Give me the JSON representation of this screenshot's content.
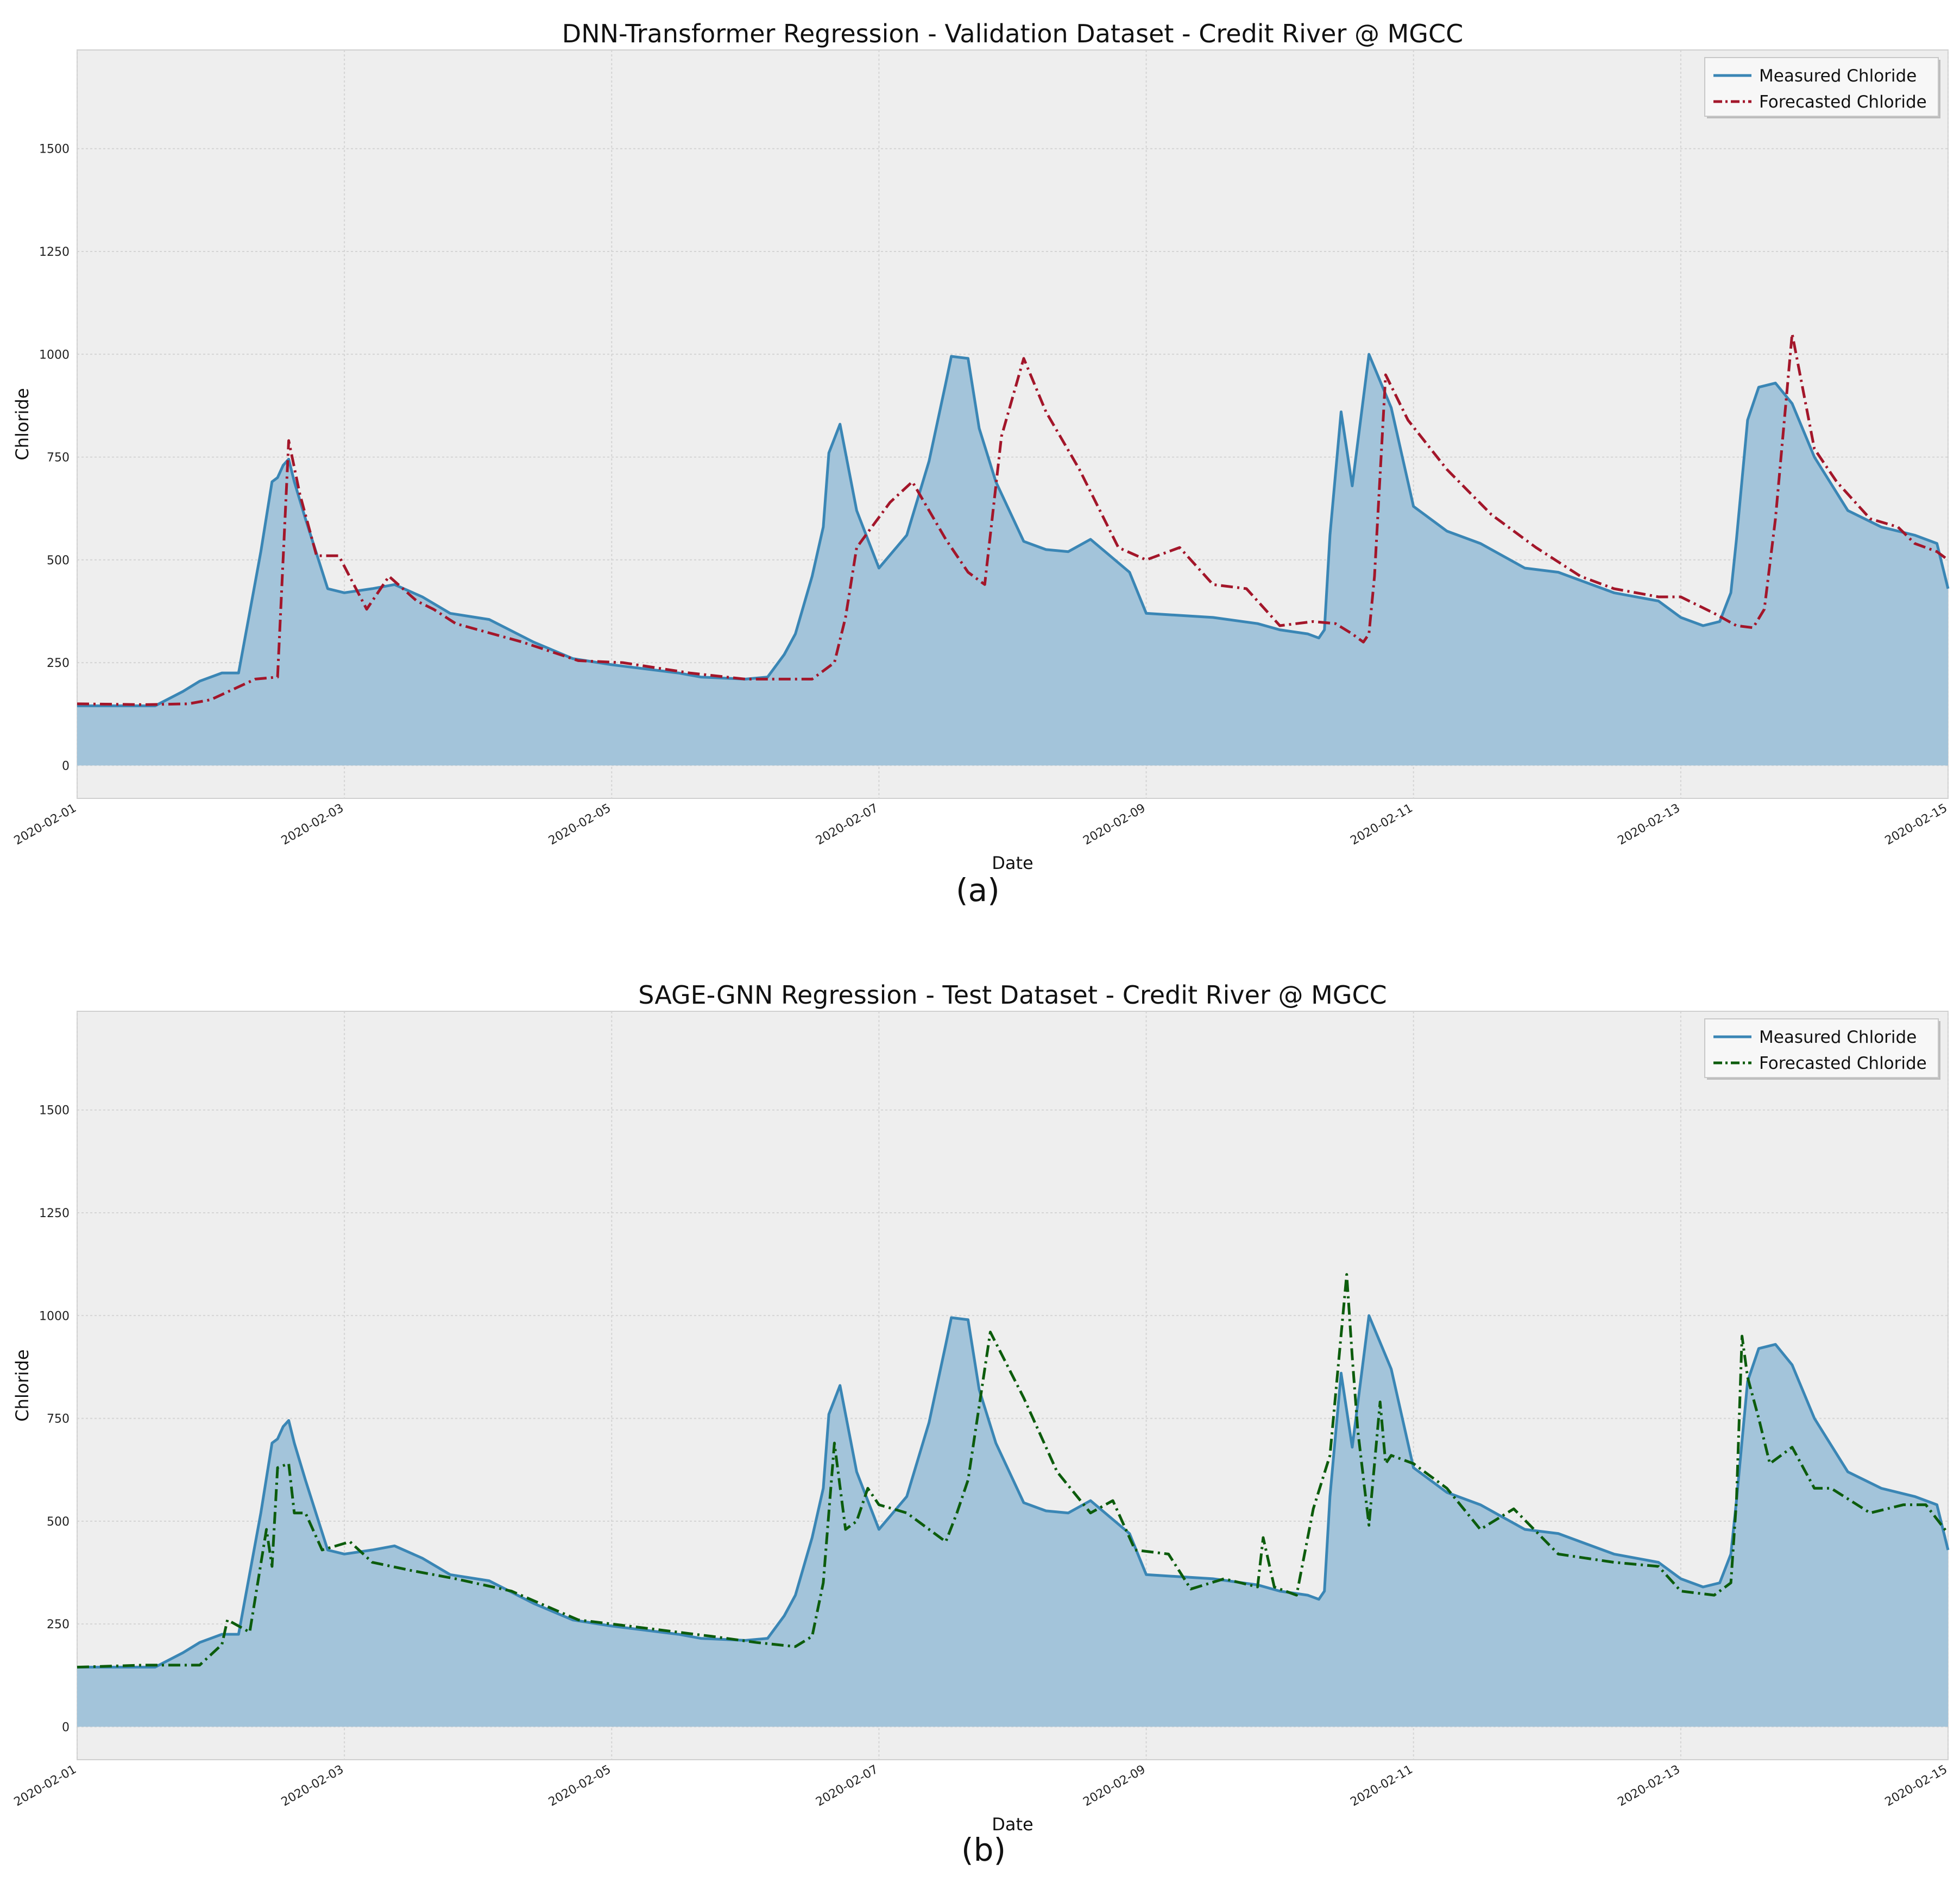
{
  "figure": {
    "captions": [
      "(a)",
      "(b)"
    ]
  },
  "chart_data": [
    {
      "type": "line",
      "title": "DNN-Transformer Regression - Validation Dataset - Credit River @ MGCC",
      "xlabel": "Date",
      "ylabel": "Chloride",
      "xlim": [
        "2020-02-01",
        "2020-02-15"
      ],
      "ylim": [
        -80,
        1740
      ],
      "x_ticks": [
        "2020-02-01",
        "2020-02-03",
        "2020-02-05",
        "2020-02-07",
        "2020-02-09",
        "2020-02-11",
        "2020-02-13",
        "2020-02-15"
      ],
      "y_ticks": [
        0,
        250,
        500,
        750,
        1000,
        1250,
        1500
      ],
      "grid": true,
      "legend_position": "top-right",
      "series": [
        {
          "name": "Measured Chloride",
          "style": "solid-filled",
          "color": "#3a86b5",
          "fill_color": "#a3c4da",
          "x": [
            "2020-02-01 00:00",
            "2020-02-01 14:00",
            "2020-02-01 19:00",
            "2020-02-01 22:00",
            "2020-02-02 02:00",
            "2020-02-02 05:00",
            "2020-02-02 09:00",
            "2020-02-02 11:00",
            "2020-02-02 12:00",
            "2020-02-02 13:00",
            "2020-02-02 14:00",
            "2020-02-02 15:00",
            "2020-02-02 17:00",
            "2020-02-02 21:00",
            "2020-02-03 00:00",
            "2020-02-03 05:00",
            "2020-02-03 09:00",
            "2020-02-03 14:00",
            "2020-02-03 19:00",
            "2020-02-04 02:00",
            "2020-02-04 10:00",
            "2020-02-04 17:00",
            "2020-02-05 00:00",
            "2020-02-05 12:00",
            "2020-02-05 16:00",
            "2020-02-06 00:00",
            "2020-02-06 04:00",
            "2020-02-06 07:00",
            "2020-02-06 09:00",
            "2020-02-06 12:00",
            "2020-02-06 14:00",
            "2020-02-06 15:00",
            "2020-02-06 17:00",
            "2020-02-06 20:00",
            "2020-02-07 00:00",
            "2020-02-07 05:00",
            "2020-02-07 09:00",
            "2020-02-07 12:00",
            "2020-02-07 13:00",
            "2020-02-07 16:00",
            "2020-02-07 18:00",
            "2020-02-07 21:00",
            "2020-02-08 02:00",
            "2020-02-08 06:00",
            "2020-02-08 10:00",
            "2020-02-08 14:00",
            "2020-02-08 21:00",
            "2020-02-09 00:00",
            "2020-02-09 12:00",
            "2020-02-09 20:00",
            "2020-02-10 00:00",
            "2020-02-10 05:00",
            "2020-02-10 07:00",
            "2020-02-10 08:00",
            "2020-02-10 09:00",
            "2020-02-10 11:00",
            "2020-02-10 13:00",
            "2020-02-10 16:00",
            "2020-02-10 20:00",
            "2020-02-11 00:00",
            "2020-02-11 06:00",
            "2020-02-11 12:00",
            "2020-02-11 20:00",
            "2020-02-12 02:00",
            "2020-02-12 12:00",
            "2020-02-12 20:00",
            "2020-02-13 00:00",
            "2020-02-13 04:00",
            "2020-02-13 07:00",
            "2020-02-13 09:00",
            "2020-02-13 10:00",
            "2020-02-13 12:00",
            "2020-02-13 14:00",
            "2020-02-13 17:00",
            "2020-02-13 20:00",
            "2020-02-14 00:00",
            "2020-02-14 06:00",
            "2020-02-14 12:00",
            "2020-02-14 18:00",
            "2020-02-14 22:00",
            "2020-02-15 00:00"
          ],
          "y": [
            145,
            145,
            180,
            205,
            225,
            225,
            520,
            690,
            700,
            730,
            745,
            690,
            600,
            430,
            420,
            430,
            440,
            410,
            370,
            355,
            300,
            260,
            245,
            225,
            215,
            210,
            215,
            270,
            320,
            460,
            580,
            760,
            830,
            620,
            480,
            560,
            740,
            930,
            995,
            990,
            820,
            690,
            545,
            525,
            520,
            550,
            470,
            370,
            360,
            345,
            330,
            320,
            310,
            330,
            560,
            860,
            680,
            1000,
            870,
            630,
            570,
            540,
            480,
            470,
            420,
            400,
            360,
            340,
            350,
            420,
            550,
            840,
            920,
            930,
            880,
            750,
            620,
            580,
            560,
            540,
            430
          ]
        },
        {
          "name": "Forecasted Chloride",
          "style": "dash-dot",
          "color": "#a3162a",
          "x": [
            "2020-02-01 00:00",
            "2020-02-01 12:00",
            "2020-02-01 20:00",
            "2020-02-02 00:00",
            "2020-02-02 08:00",
            "2020-02-02 12:00",
            "2020-02-02 14:00",
            "2020-02-02 16:00",
            "2020-02-02 19:00",
            "2020-02-02 23:00",
            "2020-02-03 04:00",
            "2020-02-03 08:00",
            "2020-02-03 13:00",
            "2020-02-03 16:00",
            "2020-02-03 20:00",
            "2020-02-04 08:00",
            "2020-02-04 18:00",
            "2020-02-05 02:00",
            "2020-02-05 14:00",
            "2020-02-06 00:00",
            "2020-02-06 12:00",
            "2020-02-06 16:00",
            "2020-02-06 18:00",
            "2020-02-06 20:00",
            "2020-02-07 02:00",
            "2020-02-07 06:00",
            "2020-02-07 12:00",
            "2020-02-07 16:00",
            "2020-02-07 19:00",
            "2020-02-07 22:00",
            "2020-02-08 02:00",
            "2020-02-08 06:00",
            "2020-02-08 12:00",
            "2020-02-08 19:00",
            "2020-02-09 00:00",
            "2020-02-09 06:00",
            "2020-02-09 12:00",
            "2020-02-09 18:00",
            "2020-02-10 00:00",
            "2020-02-10 06:00",
            "2020-02-10 10:00",
            "2020-02-10 13:00",
            "2020-02-10 15:00",
            "2020-02-10 16:00",
            "2020-02-10 17:00",
            "2020-02-10 19:00",
            "2020-02-10 23:00",
            "2020-02-11 06:00",
            "2020-02-11 14:00",
            "2020-02-11 22:00",
            "2020-02-12 06:00",
            "2020-02-12 12:00",
            "2020-02-12 20:00",
            "2020-02-13 00:00",
            "2020-02-13 06:00",
            "2020-02-13 10:00",
            "2020-02-13 13:00",
            "2020-02-13 15:00",
            "2020-02-13 17:00",
            "2020-02-13 20:00",
            "2020-02-14 00:00",
            "2020-02-14 04:00",
            "2020-02-14 10:00",
            "2020-02-14 15:00",
            "2020-02-14 18:00",
            "2020-02-14 22:00",
            "2020-02-15 00:00"
          ],
          "y": [
            150,
            148,
            150,
            160,
            210,
            215,
            790,
            660,
            510,
            510,
            380,
            460,
            400,
            380,
            345,
            300,
            255,
            250,
            225,
            210,
            210,
            250,
            360,
            530,
            640,
            690,
            550,
            470,
            440,
            800,
            990,
            860,
            720,
            530,
            500,
            530,
            440,
            430,
            340,
            350,
            345,
            320,
            300,
            320,
            460,
            950,
            840,
            720,
            610,
            530,
            460,
            430,
            410,
            410,
            370,
            340,
            335,
            380,
            600,
            1050,
            770,
            690,
            600,
            580,
            540,
            520,
            500
          ]
        }
      ]
    },
    {
      "type": "line",
      "title": "SAGE-GNN Regression - Test Dataset - Credit River @ MGCC",
      "xlabel": "Date",
      "ylabel": "Chloride",
      "xlim": [
        "2020-02-01",
        "2020-02-15"
      ],
      "ylim": [
        -80,
        1740
      ],
      "x_ticks": [
        "2020-02-01",
        "2020-02-03",
        "2020-02-05",
        "2020-02-07",
        "2020-02-09",
        "2020-02-11",
        "2020-02-13",
        "2020-02-15"
      ],
      "y_ticks": [
        0,
        250,
        500,
        750,
        1000,
        1250,
        1500
      ],
      "grid": true,
      "legend_position": "top-right",
      "series": [
        {
          "name": "Measured Chloride",
          "style": "solid-filled",
          "color": "#3a86b5",
          "fill_color": "#a3c4da",
          "x": [
            "2020-02-01 00:00",
            "2020-02-01 14:00",
            "2020-02-01 19:00",
            "2020-02-01 22:00",
            "2020-02-02 02:00",
            "2020-02-02 05:00",
            "2020-02-02 09:00",
            "2020-02-02 11:00",
            "2020-02-02 12:00",
            "2020-02-02 13:00",
            "2020-02-02 14:00",
            "2020-02-02 15:00",
            "2020-02-02 17:00",
            "2020-02-02 21:00",
            "2020-02-03 00:00",
            "2020-02-03 05:00",
            "2020-02-03 09:00",
            "2020-02-03 14:00",
            "2020-02-03 19:00",
            "2020-02-04 02:00",
            "2020-02-04 10:00",
            "2020-02-04 17:00",
            "2020-02-05 00:00",
            "2020-02-05 12:00",
            "2020-02-05 16:00",
            "2020-02-06 00:00",
            "2020-02-06 04:00",
            "2020-02-06 07:00",
            "2020-02-06 09:00",
            "2020-02-06 12:00",
            "2020-02-06 14:00",
            "2020-02-06 15:00",
            "2020-02-06 17:00",
            "2020-02-06 20:00",
            "2020-02-07 00:00",
            "2020-02-07 05:00",
            "2020-02-07 09:00",
            "2020-02-07 12:00",
            "2020-02-07 13:00",
            "2020-02-07 16:00",
            "2020-02-07 18:00",
            "2020-02-07 21:00",
            "2020-02-08 02:00",
            "2020-02-08 06:00",
            "2020-02-08 10:00",
            "2020-02-08 14:00",
            "2020-02-08 21:00",
            "2020-02-09 00:00",
            "2020-02-09 12:00",
            "2020-02-09 20:00",
            "2020-02-10 00:00",
            "2020-02-10 05:00",
            "2020-02-10 07:00",
            "2020-02-10 08:00",
            "2020-02-10 09:00",
            "2020-02-10 11:00",
            "2020-02-10 13:00",
            "2020-02-10 16:00",
            "2020-02-10 20:00",
            "2020-02-11 00:00",
            "2020-02-11 06:00",
            "2020-02-11 12:00",
            "2020-02-11 20:00",
            "2020-02-12 02:00",
            "2020-02-12 12:00",
            "2020-02-12 20:00",
            "2020-02-13 00:00",
            "2020-02-13 04:00",
            "2020-02-13 07:00",
            "2020-02-13 09:00",
            "2020-02-13 10:00",
            "2020-02-13 12:00",
            "2020-02-13 14:00",
            "2020-02-13 17:00",
            "2020-02-13 20:00",
            "2020-02-14 00:00",
            "2020-02-14 06:00",
            "2020-02-14 12:00",
            "2020-02-14 18:00",
            "2020-02-14 22:00",
            "2020-02-15 00:00"
          ],
          "y": [
            145,
            145,
            180,
            205,
            225,
            225,
            520,
            690,
            700,
            730,
            745,
            690,
            600,
            430,
            420,
            430,
            440,
            410,
            370,
            355,
            300,
            260,
            245,
            225,
            215,
            210,
            215,
            270,
            320,
            460,
            580,
            760,
            830,
            620,
            480,
            560,
            740,
            930,
            995,
            990,
            820,
            690,
            545,
            525,
            520,
            550,
            470,
            370,
            360,
            345,
            330,
            320,
            310,
            330,
            560,
            860,
            680,
            1000,
            870,
            630,
            570,
            540,
            480,
            470,
            420,
            400,
            360,
            340,
            350,
            420,
            550,
            840,
            920,
            930,
            880,
            750,
            620,
            580,
            560,
            540,
            430
          ]
        },
        {
          "name": "Forecasted Chloride",
          "style": "dash-dot",
          "color": "#0c5c0c",
          "x": [
            "2020-02-01 00:00",
            "2020-02-01 12:00",
            "2020-02-01 22:00",
            "2020-02-02 02:00",
            "2020-02-02 03:00",
            "2020-02-02 07:00",
            "2020-02-02 10:00",
            "2020-02-02 11:00",
            "2020-02-02 12:00",
            "2020-02-02 14:00",
            "2020-02-02 15:00",
            "2020-02-02 17:00",
            "2020-02-02 20:00",
            "2020-02-03 01:00",
            "2020-02-03 05:00",
            "2020-02-03 12:00",
            "2020-02-03 20:00",
            "2020-02-04 06:00",
            "2020-02-04 18:00",
            "2020-02-05 06:00",
            "2020-02-05 18:00",
            "2020-02-06 02:00",
            "2020-02-06 09:00",
            "2020-02-06 12:00",
            "2020-02-06 14:00",
            "2020-02-06 16:00",
            "2020-02-06 18:00",
            "2020-02-06 20:00",
            "2020-02-06 22:00",
            "2020-02-07 00:00",
            "2020-02-07 05:00",
            "2020-02-07 12:00",
            "2020-02-07 14:00",
            "2020-02-07 16:00",
            "2020-02-07 20:00",
            "2020-02-08 02:00",
            "2020-02-08 08:00",
            "2020-02-08 14:00",
            "2020-02-08 18:00",
            "2020-02-08 22:00",
            "2020-02-09 04:00",
            "2020-02-09 08:00",
            "2020-02-09 14:00",
            "2020-02-09 20:00",
            "2020-02-09 21:00",
            "2020-02-09 23:00",
            "2020-02-10 03:00",
            "2020-02-10 06:00",
            "2020-02-10 09:00",
            "2020-02-10 12:00",
            "2020-02-10 13:00",
            "2020-02-10 14:00",
            "2020-02-10 16:00",
            "2020-02-10 18:00",
            "2020-02-10 19:00",
            "2020-02-10 20:00",
            "2020-02-11 00:00",
            "2020-02-11 06:00",
            "2020-02-11 12:00",
            "2020-02-11 18:00",
            "2020-02-12 02:00",
            "2020-02-12 12:00",
            "2020-02-12 20:00",
            "2020-02-13 00:00",
            "2020-02-13 06:00",
            "2020-02-13 09:00",
            "2020-02-13 10:00",
            "2020-02-13 11:00",
            "2020-02-13 12:00",
            "2020-02-13 14:00",
            "2020-02-13 16:00",
            "2020-02-13 20:00",
            "2020-02-14 00:00",
            "2020-02-14 03:00",
            "2020-02-14 10:00",
            "2020-02-14 16:00",
            "2020-02-14 20:00",
            "2020-02-15 00:00"
          ],
          "y": [
            145,
            150,
            150,
            200,
            260,
            230,
            480,
            390,
            630,
            640,
            520,
            520,
            430,
            450,
            400,
            380,
            360,
            330,
            260,
            240,
            220,
            205,
            195,
            220,
            350,
            690,
            480,
            500,
            580,
            540,
            520,
            450,
            520,
            600,
            960,
            800,
            620,
            520,
            550,
            430,
            420,
            335,
            360,
            340,
            460,
            340,
            320,
            530,
            660,
            1100,
            900,
            720,
            490,
            790,
            640,
            660,
            640,
            580,
            480,
            530,
            420,
            400,
            390,
            330,
            320,
            350,
            550,
            950,
            850,
            750,
            640,
            680,
            580,
            580,
            520,
            540,
            540,
            470
          ]
        }
      ]
    }
  ]
}
